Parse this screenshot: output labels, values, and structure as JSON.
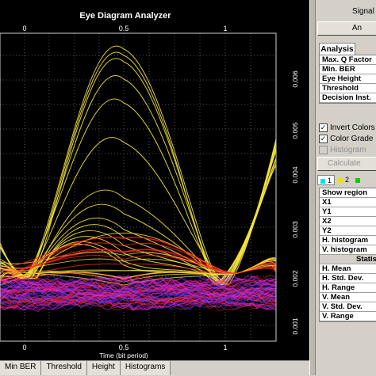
{
  "colors": {
    "trace_yellow": "#f2e23a",
    "trace_red": "#ff2020",
    "trace_magenta": "#ff20ff",
    "trace_blue": "#4040ff",
    "plot_background": "#000000",
    "swatch_1": "#00e0f0",
    "swatch_2": "#f0e000",
    "swatch_3": "#00d000"
  },
  "plot": {
    "title": "Eye Diagram Analyzer",
    "xlabel": "Time (bit period)",
    "top_ticks": [
      "0",
      "0.5",
      "1"
    ],
    "bottom_ticks": [
      "0",
      "0.5",
      "1"
    ],
    "right_ticks": [
      "0.006",
      "0.005",
      "0.004",
      "0.003",
      "0.002",
      "0.001"
    ]
  },
  "tabs": [
    "Min BER",
    "Threshold",
    "Height",
    "Histograms"
  ],
  "panel": {
    "signal_label": "Signal",
    "top_button": "An",
    "analysis_header": "Analysis",
    "analysis_rows": [
      "Max. Q Factor",
      "Min. BER",
      "Eye Height",
      "Threshold",
      "Decision Inst."
    ],
    "invert_colors": "Invert Colors",
    "color_grade": "Color Grade",
    "histogram": "Histogram",
    "calculate": "Calculate",
    "swatches": [
      "1",
      "2"
    ],
    "region_rows": [
      "Show region",
      "X1",
      "Y1",
      "X2",
      "Y2",
      "H. histogram",
      "V. histogram"
    ],
    "stats_header": "Statis",
    "stats_rows": [
      "H. Mean",
      "H. Std. Dev.",
      "H. Range",
      "V. Mean",
      "V. Std. Dev.",
      "V. Range"
    ]
  }
}
